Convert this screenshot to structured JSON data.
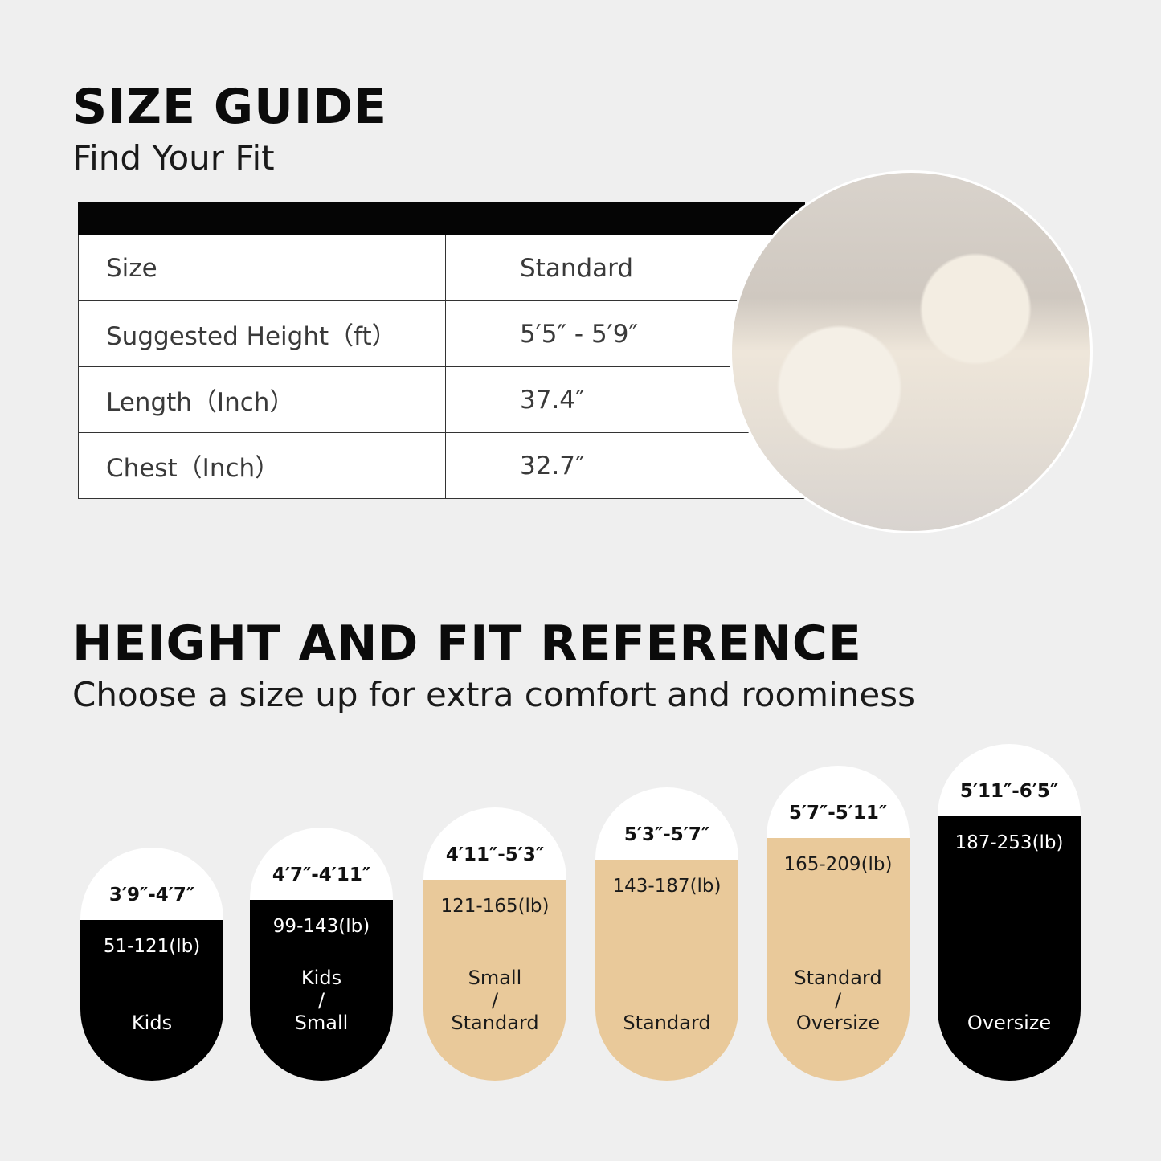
{
  "size_guide": {
    "title": "SIZE GUIDE",
    "subtitle": "Find Your Fit",
    "rows": [
      {
        "label": "Size",
        "value": "Standard"
      },
      {
        "label": "Suggested Height（ft）",
        "value": "5′5″ - 5′9″"
      },
      {
        "label": "Length（Inch）",
        "value": "37.4″"
      },
      {
        "label": "Chest（Inch）",
        "value": "32.7″"
      }
    ]
  },
  "reference": {
    "title": "HEIGHT AND FIT REFERENCE",
    "subtitle": "Choose a size up for extra comfort and roominess",
    "pills": [
      {
        "height": "3′9″-4′7″",
        "weight": "51-121(lb)",
        "size_top": "",
        "sep": "",
        "size": "Kids",
        "color": "#000000"
      },
      {
        "height": "4′7″-4′11″",
        "weight": "99-143(lb)",
        "size_top": "Kids",
        "sep": "/",
        "size": "Small",
        "color": "#000000"
      },
      {
        "height": "4′11″-5′3″",
        "weight": "121-165(lb)",
        "size_top": "Small",
        "sep": "/",
        "size": "Standard",
        "color": "#e9c99a"
      },
      {
        "height": "5′3″-5′7″",
        "weight": "143-187(lb)",
        "size_top": "",
        "sep": "",
        "size": "Standard",
        "color": "#e9c99a"
      },
      {
        "height": "5′7″-5′11″",
        "weight": "165-209(lb)",
        "size_top": "Standard",
        "sep": "/",
        "size": "Oversize",
        "color": "#e9c99a"
      },
      {
        "height": "5′11″-6′5″",
        "weight": "187-253(lb)",
        "size_top": "",
        "sep": "",
        "size": "Oversize",
        "color": "#000000"
      }
    ]
  }
}
